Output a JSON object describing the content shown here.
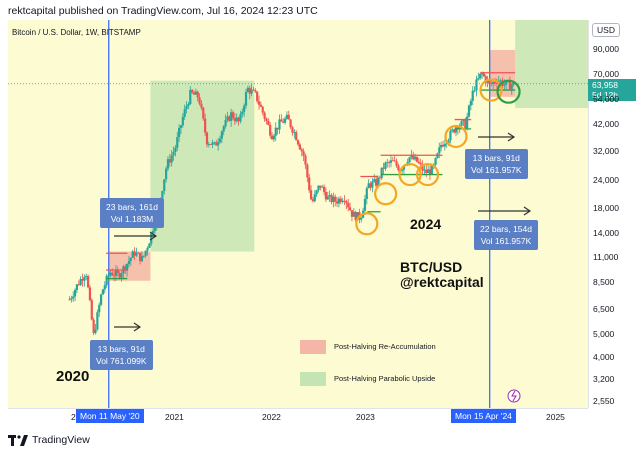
{
  "header": {
    "publisher_line": "rektcapital published on TradingView.com, Jul 16, 2024 12:23 UTC"
  },
  "symbol": {
    "title": "Bitcoin / U.S. Dollar, 1W, BITSTAMP"
  },
  "currency": "USD",
  "price_tag": {
    "price": "63,958",
    "countdown": "5d 12h"
  },
  "footer": {
    "brand": "TradingView"
  },
  "annotations": {
    "year_2020": "2020",
    "year_2024": "2024",
    "ticker": "BTC/USD",
    "handle": "@rektcapital"
  },
  "info_boxes": [
    {
      "line1": "23 bars, 161d",
      "line2": "Vol 1.183M"
    },
    {
      "line1": "13 bars, 91d",
      "line2": "Vol 761.099K"
    },
    {
      "line1": "13 bars, 91d",
      "line2": "Vol 161.957K"
    },
    {
      "line1": "22 bars, 154d",
      "line2": "Vol 161.957K"
    }
  ],
  "legend": [
    {
      "label": "Post-Halving Re-Accumulation",
      "color": "#f4b6a6"
    },
    {
      "label": "Post-Halving Parabolic Upside",
      "color": "#c5e4b3"
    }
  ],
  "time_axis": {
    "labels": [
      "2",
      "2021",
      "2022",
      "2023",
      "2025"
    ],
    "highlighted": [
      "Mon 11 May '20",
      "Mon 15 Apr '24"
    ]
  },
  "price_axis": {
    "labels": [
      "90,000",
      "70,000",
      "54,000",
      "42,000",
      "32,000",
      "24,000",
      "18,000",
      "14,000",
      "11,000",
      "8,500",
      "6,500",
      "5,000",
      "4,000",
      "3,200",
      "2,550"
    ]
  },
  "colors": {
    "background": "#fdfbd1",
    "up_candle": "#26a69a",
    "down_candle": "#ef5350",
    "halving_line": "#2962ff",
    "circles": "#f5a623",
    "green_circle": "#2e9e44"
  },
  "chart_data": {
    "type": "candlestick",
    "symbol": "Bitcoin / U.S. Dollar",
    "interval": "1W",
    "exchange": "BITSTAMP",
    "y_scale": "log",
    "ylim": [
      2550,
      100000
    ],
    "halving_dates": [
      "2020-05-11",
      "2024-04-15"
    ],
    "price_path": [
      [
        "2019-12",
        7200
      ],
      [
        "2020-01",
        8400
      ],
      [
        "2020-02",
        9600
      ],
      [
        "2020-03",
        5000
      ],
      [
        "2020-04",
        7800
      ],
      [
        "2020-05",
        9500
      ],
      [
        "2020-06",
        9200
      ],
      [
        "2020-07",
        10200
      ],
      [
        "2020-08",
        11600
      ],
      [
        "2020-09",
        10800
      ],
      [
        "2020-10",
        13500
      ],
      [
        "2020-11",
        18500
      ],
      [
        "2020-12",
        28000
      ],
      [
        "2021-01",
        33000
      ],
      [
        "2021-02",
        46000
      ],
      [
        "2021-03",
        58000
      ],
      [
        "2021-04",
        56000
      ],
      [
        "2021-05",
        36000
      ],
      [
        "2021-06",
        34000
      ],
      [
        "2021-07",
        41000
      ],
      [
        "2021-08",
        47000
      ],
      [
        "2021-09",
        43000
      ],
      [
        "2021-10",
        61000
      ],
      [
        "2021-11",
        57000
      ],
      [
        "2021-12",
        47000
      ],
      [
        "2022-01",
        38000
      ],
      [
        "2022-02",
        43000
      ],
      [
        "2022-03",
        45000
      ],
      [
        "2022-04",
        38000
      ],
      [
        "2022-05",
        31000
      ],
      [
        "2022-06",
        19000
      ],
      [
        "2022-07",
        23000
      ],
      [
        "2022-08",
        20000
      ],
      [
        "2022-09",
        19500
      ],
      [
        "2022-10",
        20500
      ],
      [
        "2022-11",
        17000
      ],
      [
        "2022-12",
        16500
      ],
      [
        "2023-01",
        23000
      ],
      [
        "2023-02",
        23500
      ],
      [
        "2023-03",
        28000
      ],
      [
        "2023-04",
        29000
      ],
      [
        "2023-05",
        27000
      ],
      [
        "2023-06",
        30500
      ],
      [
        "2023-07",
        29200
      ],
      [
        "2023-08",
        26000
      ],
      [
        "2023-09",
        27000
      ],
      [
        "2023-10",
        34500
      ],
      [
        "2023-11",
        37700
      ],
      [
        "2023-12",
        42300
      ],
      [
        "2024-01",
        42500
      ],
      [
        "2024-02",
        61000
      ],
      [
        "2024-03",
        71000
      ],
      [
        "2024-04",
        63000
      ],
      [
        "2024-05",
        67000
      ],
      [
        "2024-06",
        62700
      ],
      [
        "2024-07",
        63958
      ]
    ]
  }
}
